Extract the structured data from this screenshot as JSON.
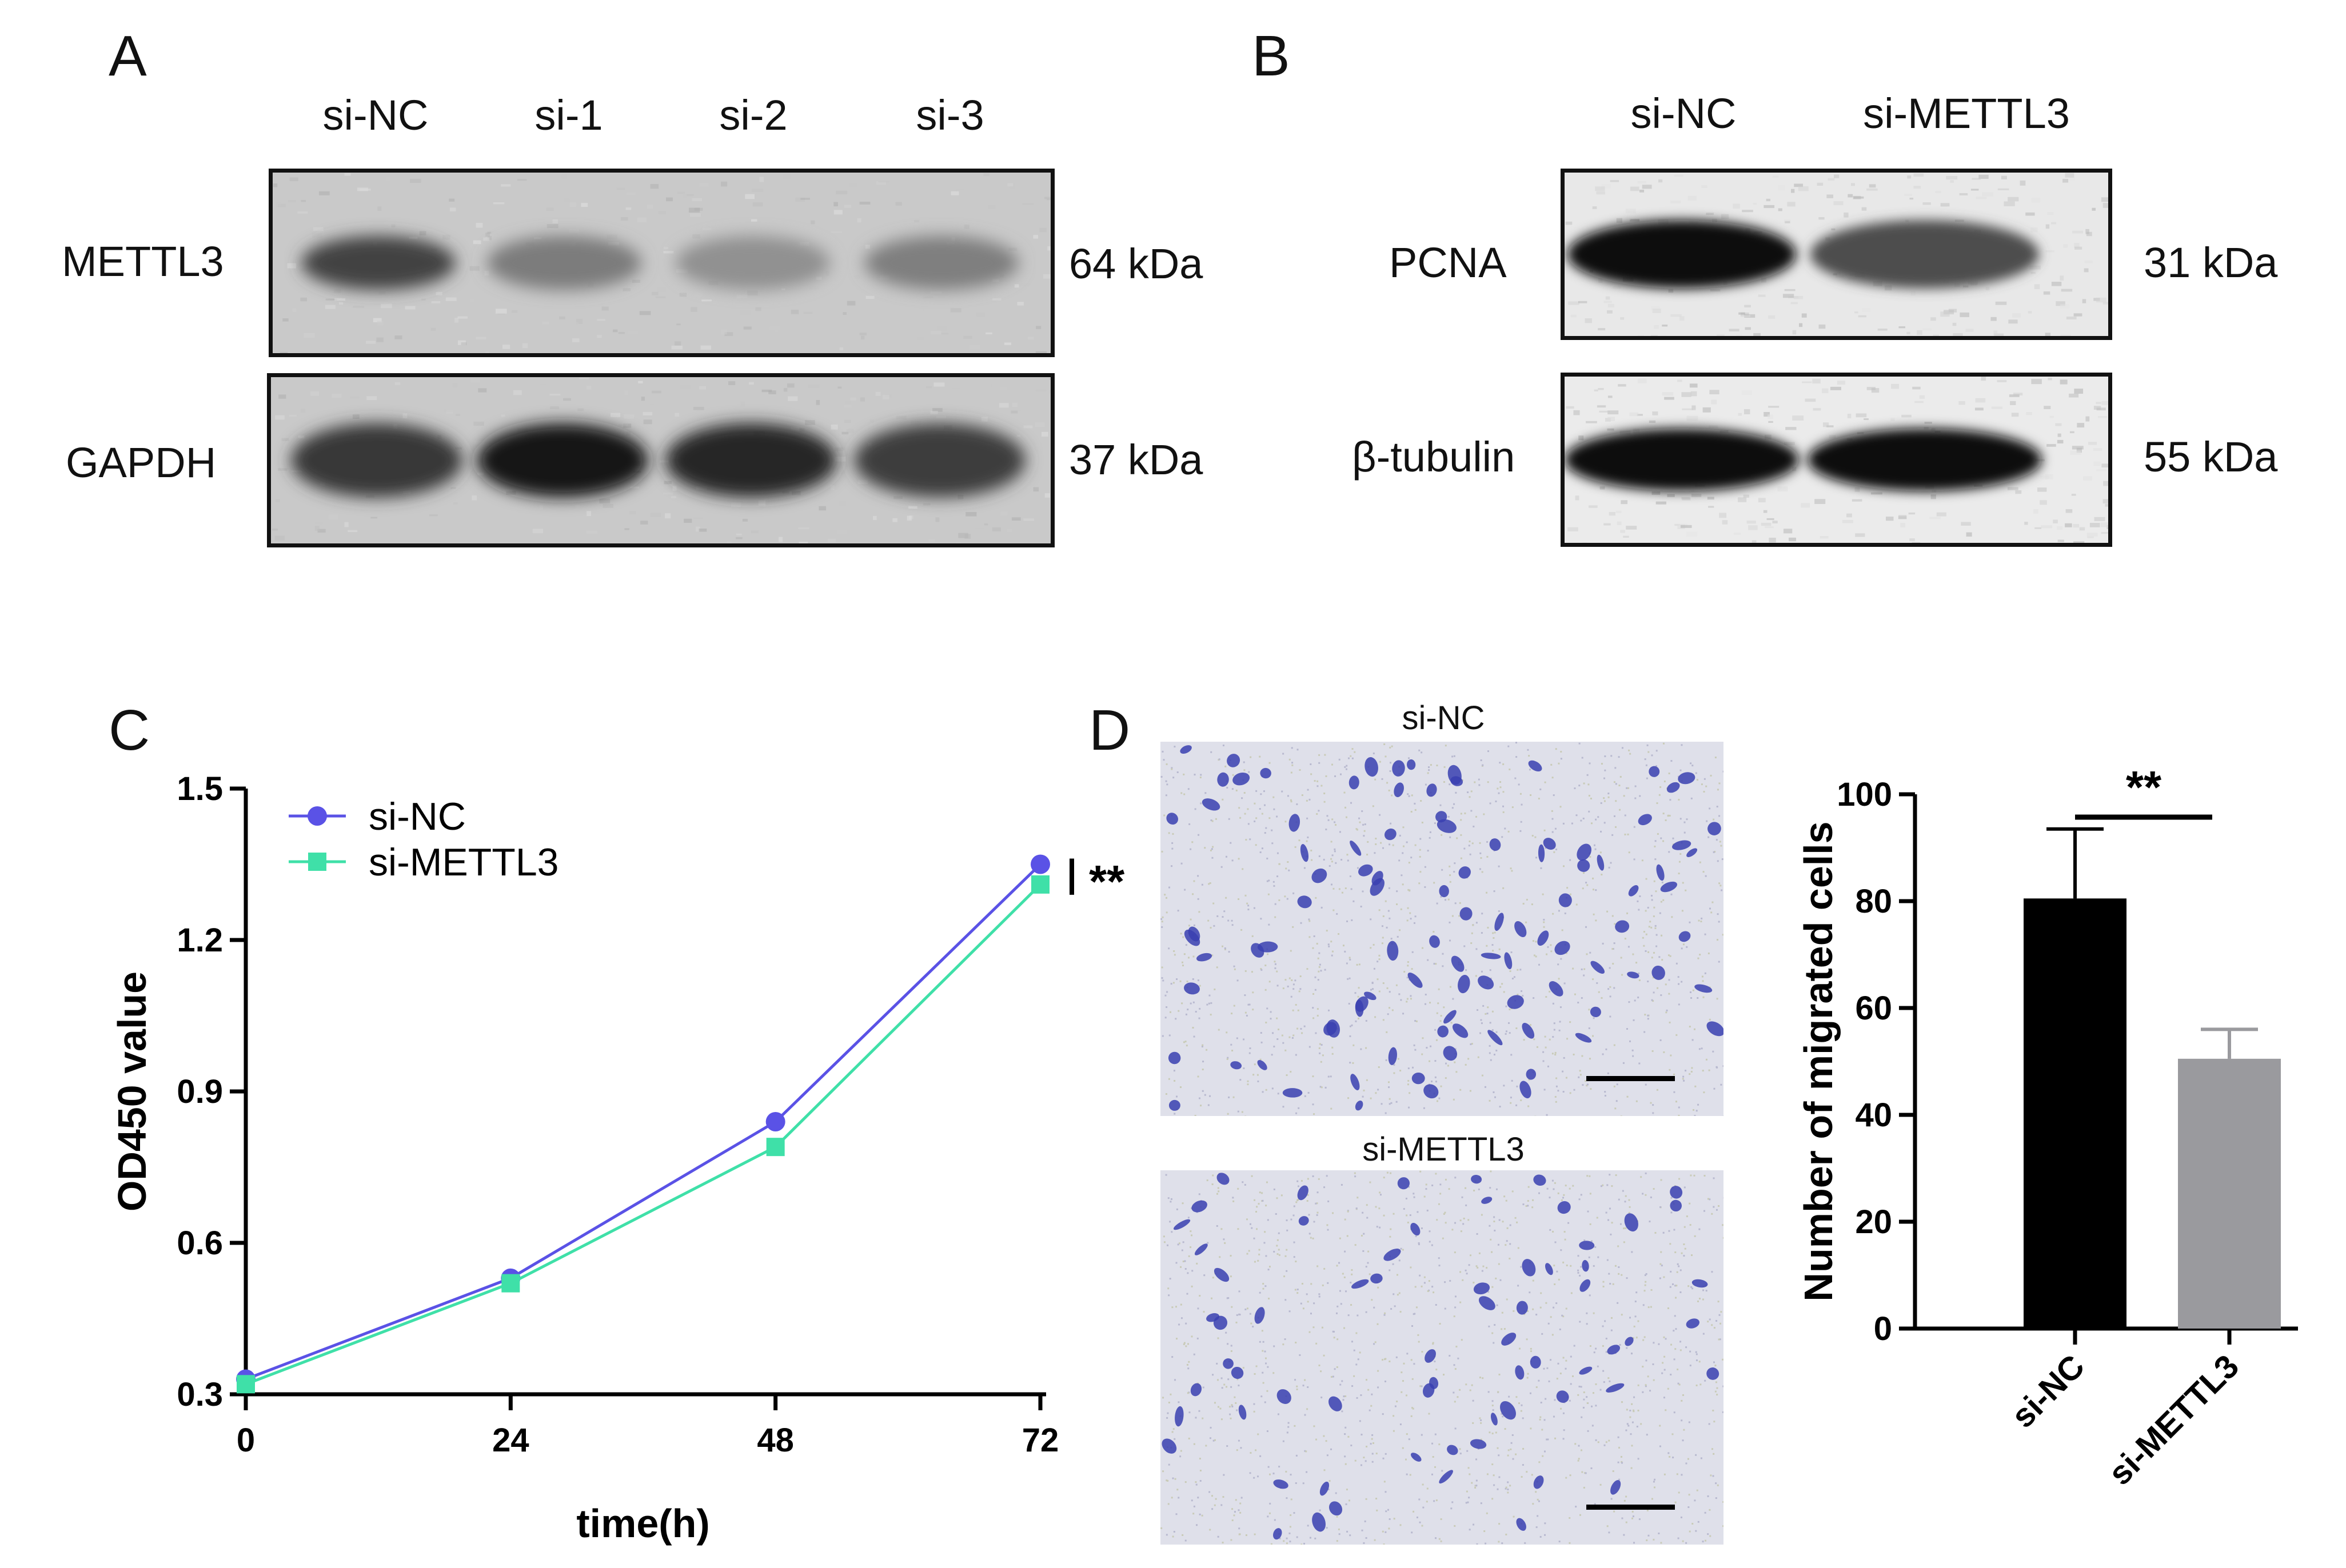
{
  "panelA": {
    "letter": "A",
    "lanes": [
      "si-NC",
      "si-1",
      "si-2",
      "si-3"
    ],
    "blots": [
      {
        "protein": "METTL3",
        "kda": "64 kDa",
        "intensity": [
          0.75,
          0.5,
          0.4,
          0.48
        ]
      },
      {
        "protein": "GAPDH",
        "kda": "37 kDa",
        "intensity": [
          0.8,
          0.95,
          0.88,
          0.78
        ]
      }
    ]
  },
  "panelB": {
    "letter": "B",
    "lanes": [
      "si-NC",
      "si-METTL3"
    ],
    "blots": [
      {
        "protein": "PCNA",
        "kda": "31 kDa",
        "intensity": [
          1.0,
          0.7
        ]
      },
      {
        "protein": "β-tubulin",
        "kda": "55 kDa",
        "intensity": [
          1.0,
          1.0
        ]
      }
    ]
  },
  "panelC": {
    "letter": "C",
    "significance": "**",
    "colors": {
      "si-NC": "#5a52e6",
      "si-METTL3": "#3fe0a8"
    },
    "chart_data": {
      "type": "line",
      "xlabel": "time(h)",
      "ylabel": "OD450 value",
      "x": [
        0,
        24,
        48,
        72
      ],
      "xlim": [
        0,
        72
      ],
      "ylim": [
        0.3,
        1.5
      ],
      "yticks": [
        0.3,
        0.6,
        0.9,
        1.2,
        1.5
      ],
      "legend": "top-left",
      "grid": false,
      "series": [
        {
          "name": "si-NC",
          "marker": "circle",
          "values": [
            0.33,
            0.53,
            0.84,
            1.35
          ]
        },
        {
          "name": "si-METTL3",
          "marker": "square",
          "values": [
            0.32,
            0.52,
            0.79,
            1.31
          ]
        }
      ]
    }
  },
  "panelD": {
    "letter": "D",
    "images": [
      {
        "title": "si-NC",
        "density": 0.9
      },
      {
        "title": "si-METTL3",
        "density": 0.6
      }
    ],
    "significance": "**",
    "colors": {
      "si-NC": "#000000",
      "si-METTL3": "#9a9a9e"
    },
    "chart_data": {
      "type": "bar",
      "categories": [
        "si-NC",
        "si-METTL3"
      ],
      "values": [
        80.5,
        50.5
      ],
      "errors": [
        13,
        5.5
      ],
      "ylabel": "Number of migrated cells",
      "ylim": [
        0,
        100
      ],
      "yticks": [
        0,
        20,
        40,
        60,
        80,
        100
      ],
      "grid": false
    }
  }
}
